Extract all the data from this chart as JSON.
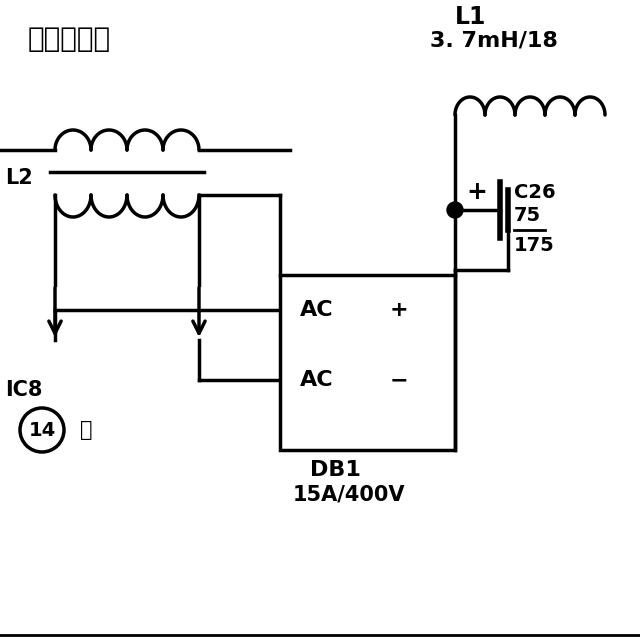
{
  "bg_color": "#ffffff",
  "fg_color": "#000000",
  "title_text": "电流互感器",
  "l2_label": "L2",
  "l1_label": "L1",
  "l1_spec": "3. 7mH/18",
  "c26_label": "C26",
  "c26_spec1": "75",
  "c26_spec2": "175",
  "db1_label": "DB1",
  "db1_spec": "15A/400V",
  "ic8_label": "IC8",
  "ic8_pin": "14",
  "ic8_pin_label": "脚",
  "ac_plus_label": "AC",
  "ac_plus_sign": "+",
  "ac_minus_label": "AC",
  "ac_minus_sign": "−"
}
